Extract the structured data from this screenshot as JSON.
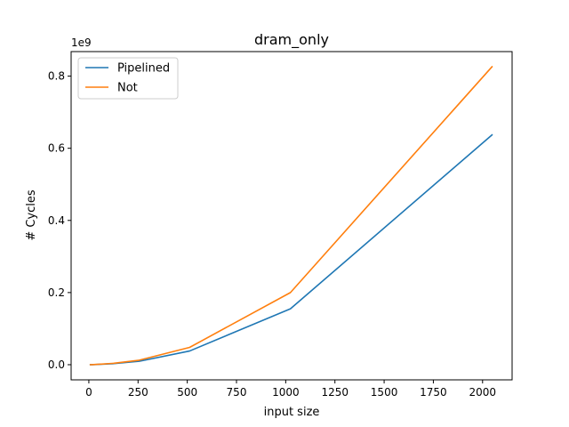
{
  "chart_data": {
    "type": "line",
    "title": "dram_only",
    "xlabel": "input size",
    "ylabel": "# Cycles",
    "y_offset_label": "1e9",
    "xlim": [
      -90,
      2150
    ],
    "ylim": [
      -0.042,
      0.868
    ],
    "x_ticks": [
      0,
      250,
      500,
      750,
      1000,
      1250,
      1500,
      1750,
      2000
    ],
    "y_ticks": [
      0.0,
      0.2,
      0.4,
      0.6,
      0.8
    ],
    "x_tick_labels": [
      "0",
      "250",
      "500",
      "750",
      "1000",
      "1250",
      "1500",
      "1750",
      "2000"
    ],
    "y_tick_labels": [
      "0.0",
      "0.2",
      "0.4",
      "0.6",
      "0.8"
    ],
    "grid": false,
    "legend_position": "top-left",
    "series": [
      {
        "name": "Pipelined",
        "color": "#1f77b4",
        "x": [
          8,
          16,
          32,
          64,
          128,
          256,
          512,
          1024,
          2048
        ],
        "y": [
          0.0,
          0.0002,
          0.0005,
          0.0012,
          0.003,
          0.0095,
          0.038,
          0.155,
          0.637
        ]
      },
      {
        "name": "Not",
        "color": "#ff7f0e",
        "x": [
          8,
          16,
          32,
          64,
          128,
          256,
          512,
          1024,
          2048
        ],
        "y": [
          0.0,
          0.0002,
          0.0006,
          0.0015,
          0.004,
          0.0125,
          0.048,
          0.2,
          0.826
        ]
      }
    ]
  }
}
